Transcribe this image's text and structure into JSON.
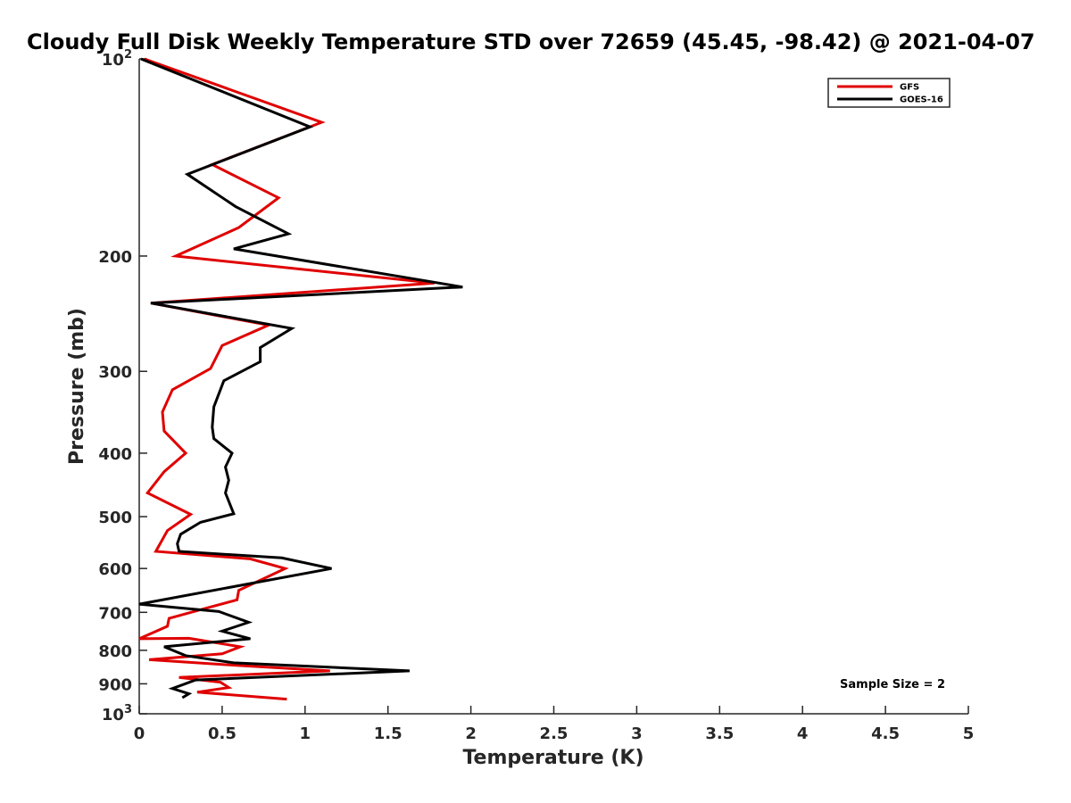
{
  "chart_data": {
    "type": "line",
    "title": "Cloudy Full Disk Weekly Temperature STD over 72659 (45.45, -98.42) @ 2021-04-07",
    "xlabel": "Temperature (K)",
    "ylabel": "Pressure (mb)",
    "xlim": [
      0,
      5
    ],
    "ylim": [
      100,
      1000
    ],
    "y_scale": "log",
    "y_reversed": true,
    "grid": false,
    "legend_position": "top-right",
    "x_ticks": [
      0,
      0.5,
      1,
      1.5,
      2,
      2.5,
      3,
      3.5,
      4,
      4.5,
      5
    ],
    "x_tick_labels": [
      "0",
      "0.5",
      "1",
      "1.5",
      "2",
      "2.5",
      "3",
      "3.5",
      "4",
      "4.5",
      "5"
    ],
    "y_ticks": [
      100,
      200,
      300,
      400,
      500,
      600,
      700,
      800,
      900,
      1000
    ],
    "y_tick_labels": [
      {
        "base": "10",
        "exp": "2"
      },
      {
        "base": "200",
        "exp": ""
      },
      {
        "base": "300",
        "exp": ""
      },
      {
        "base": "400",
        "exp": ""
      },
      {
        "base": "500",
        "exp": ""
      },
      {
        "base": "600",
        "exp": ""
      },
      {
        "base": "700",
        "exp": ""
      },
      {
        "base": "800",
        "exp": ""
      },
      {
        "base": "900",
        "exp": ""
      },
      {
        "base": "10",
        "exp": "3"
      }
    ],
    "annotation": "Sample Size = 2",
    "series": [
      {
        "name": "GFS",
        "color": "#e00000",
        "points": [
          [
            0.03,
            100
          ],
          [
            1.1,
            125
          ],
          [
            0.44,
            145
          ],
          [
            0.84,
            163
          ],
          [
            0.6,
            181
          ],
          [
            0.22,
            200
          ],
          [
            1.78,
            220
          ],
          [
            0.07,
            236
          ],
          [
            0.78,
            255
          ],
          [
            0.5,
            274
          ],
          [
            0.43,
            297
          ],
          [
            0.2,
            320
          ],
          [
            0.14,
            346
          ],
          [
            0.15,
            370
          ],
          [
            0.28,
            400
          ],
          [
            0.15,
            427
          ],
          [
            0.05,
            460
          ],
          [
            0.31,
            496
          ],
          [
            0.17,
            525
          ],
          [
            0.1,
            565
          ],
          [
            0.67,
            580
          ],
          [
            0.88,
            600
          ],
          [
            0.6,
            648
          ],
          [
            0.59,
            670
          ],
          [
            0.42,
            688
          ],
          [
            0.18,
            715
          ],
          [
            0.17,
            735
          ],
          [
            0.0,
            768
          ],
          [
            0.3,
            767
          ],
          [
            0.61,
            790
          ],
          [
            0.5,
            810
          ],
          [
            0.06,
            827
          ],
          [
            0.6,
            844
          ],
          [
            1.15,
            860
          ],
          [
            0.24,
            880
          ],
          [
            0.49,
            895
          ],
          [
            0.54,
            912
          ],
          [
            0.35,
            927
          ],
          [
            0.89,
            950
          ]
        ]
      },
      {
        "name": "GOES-16",
        "color": "#000000",
        "points": [
          [
            0.01,
            100
          ],
          [
            1.03,
            127
          ],
          [
            0.29,
            150
          ],
          [
            0.58,
            168
          ],
          [
            0.9,
            185
          ],
          [
            0.57,
            195
          ],
          [
            1.95,
            223
          ],
          [
            0.07,
            236
          ],
          [
            0.92,
            258
          ],
          [
            0.73,
            276
          ],
          [
            0.73,
            290
          ],
          [
            0.51,
            310
          ],
          [
            0.45,
            340
          ],
          [
            0.44,
            365
          ],
          [
            0.45,
            380
          ],
          [
            0.56,
            400
          ],
          [
            0.52,
            420
          ],
          [
            0.54,
            440
          ],
          [
            0.52,
            460
          ],
          [
            0.57,
            495
          ],
          [
            0.37,
            510
          ],
          [
            0.25,
            532
          ],
          [
            0.23,
            550
          ],
          [
            0.24,
            565
          ],
          [
            0.86,
            578
          ],
          [
            1.16,
            600
          ],
          [
            0.0,
            680
          ],
          [
            0.48,
            698
          ],
          [
            0.66,
            725
          ],
          [
            0.5,
            748
          ],
          [
            0.67,
            768
          ],
          [
            0.15,
            790
          ],
          [
            0.28,
            815
          ],
          [
            0.57,
            836
          ],
          [
            1.63,
            860
          ],
          [
            0.34,
            888
          ],
          [
            0.2,
            915
          ],
          [
            0.3,
            932
          ],
          [
            0.26,
            945
          ]
        ]
      }
    ]
  }
}
